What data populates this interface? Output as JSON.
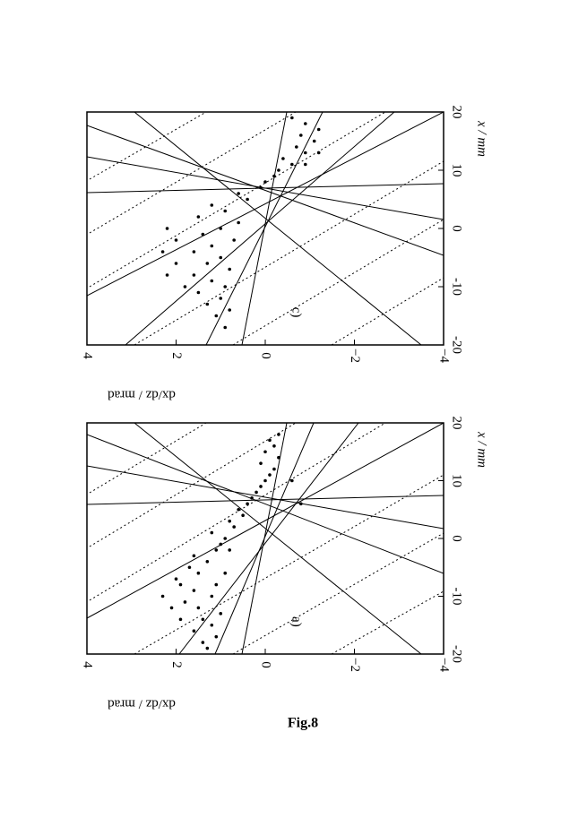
{
  "figure_caption": "Fig.8",
  "chart_data": [
    {
      "type": "scatter",
      "panel_label": "c)",
      "x_label": "x / mm",
      "y_label": "dx/dz / mrad",
      "xlim": [
        -20,
        20
      ],
      "xticks": [
        -20,
        -10,
        0,
        10,
        20
      ],
      "ylim": [
        -4,
        4
      ],
      "yticks": [
        {
          "value": -4,
          "label": "−4"
        },
        {
          "value": -2,
          "label": "−2"
        },
        0,
        2,
        4
      ],
      "color": "#000000",
      "x": [
        -17,
        -15,
        -14,
        -13,
        -12,
        -11,
        -10,
        -10,
        -9,
        -8,
        -8,
        -7,
        -6,
        -6,
        -5,
        -4,
        -4,
        -3,
        -2,
        -2,
        -1,
        0,
        0,
        1,
        2,
        3,
        4,
        5,
        6,
        7,
        8,
        9,
        10,
        11,
        12,
        13,
        14,
        15,
        16,
        17,
        18,
        19,
        13,
        11
      ],
      "values": [
        0.9,
        1.1,
        0.8,
        1.3,
        1.0,
        1.5,
        0.9,
        1.8,
        1.2,
        2.2,
        1.6,
        0.8,
        2.0,
        1.3,
        1.0,
        2.3,
        1.6,
        1.2,
        2.0,
        0.7,
        1.4,
        1.0,
        2.2,
        0.6,
        1.5,
        0.9,
        1.2,
        0.4,
        0.6,
        0.1,
        0.0,
        -0.2,
        -0.3,
        -0.6,
        -0.4,
        -0.9,
        -0.7,
        -1.1,
        -0.8,
        -1.2,
        -0.9,
        -0.6,
        -1.2,
        -0.9
      ]
    },
    {
      "type": "scatter",
      "panel_label": "a)",
      "x_label": "x / mm",
      "y_label": "dx/dz / mrad",
      "xlim": [
        -20,
        20
      ],
      "xticks": [
        -20,
        -10,
        0,
        10,
        20
      ],
      "ylim": [
        -4,
        4
      ],
      "yticks": [
        {
          "value": -4,
          "label": "−4"
        },
        {
          "value": -2,
          "label": "−2"
        },
        0,
        2,
        4
      ],
      "color": "#000000",
      "x": [
        -19,
        -18,
        -17,
        -16,
        -15,
        -14,
        -14,
        -13,
        -12,
        -12,
        -11,
        -10,
        -10,
        -9,
        -8,
        -8,
        -7,
        -6,
        -6,
        -5,
        -4,
        -3,
        -2,
        -2,
        -1,
        0,
        1,
        2,
        3,
        4,
        5,
        6,
        7,
        8,
        9,
        10,
        11,
        12,
        13,
        14,
        15,
        16,
        17,
        18,
        10,
        6
      ],
      "values": [
        1.3,
        1.4,
        1.1,
        1.6,
        1.2,
        1.9,
        1.4,
        1.0,
        2.1,
        1.5,
        1.8,
        1.2,
        2.3,
        1.6,
        1.9,
        1.1,
        2.0,
        1.5,
        0.9,
        1.7,
        1.3,
        1.6,
        1.1,
        0.8,
        1.0,
        0.9,
        1.2,
        0.7,
        0.8,
        0.5,
        0.6,
        0.4,
        0.3,
        0.2,
        0.1,
        0.0,
        -0.1,
        -0.2,
        0.1,
        -0.3,
        0.0,
        -0.2,
        -0.1,
        -0.3,
        -0.6,
        -0.8
      ]
    }
  ]
}
